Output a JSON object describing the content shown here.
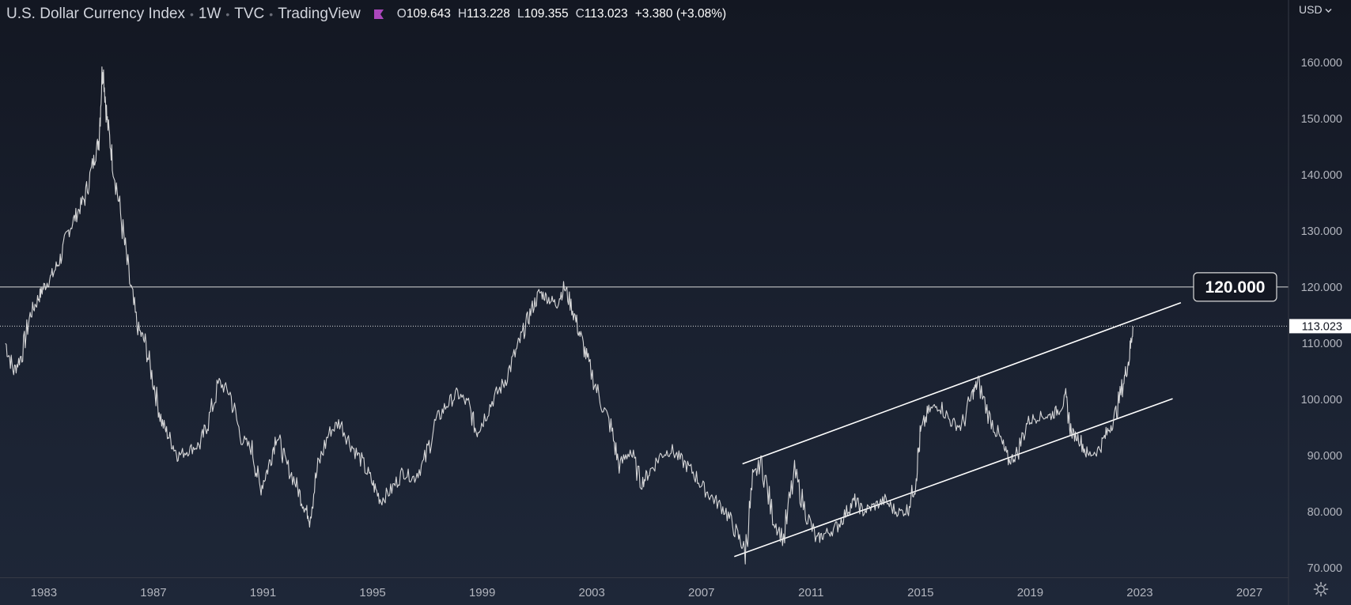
{
  "header": {
    "title": "U.S. Dollar Currency Index",
    "interval": "1W",
    "exchange": "TVC",
    "source": "TradingView",
    "open_label": "O",
    "open": "109.643",
    "high_label": "H",
    "high": "113.228",
    "low_label": "L",
    "low": "109.355",
    "close_label": "C",
    "close": "113.023",
    "change": "+3.380 (+3.08%)",
    "flag_color": "#ab47bc"
  },
  "currency_selector": "USD",
  "colors": {
    "price_line": "#e6e6e6",
    "drawing": "#ffffff",
    "axis_text": "#b2b5be"
  },
  "chart_data": {
    "type": "line",
    "title": "U.S. Dollar Currency Index",
    "x_ticks": [
      "1983",
      "1987",
      "1991",
      "1995",
      "1999",
      "2003",
      "2007",
      "2011",
      "2015",
      "2019",
      "2023",
      "2027"
    ],
    "y_ticks": [
      "70.000",
      "80.000",
      "90.000",
      "100.000",
      "110.000",
      "120.000",
      "130.000",
      "140.000",
      "150.000",
      "160.000"
    ],
    "xlim": [
      1981.4,
      2028.4
    ],
    "ylim": [
      68.3,
      171.1
    ],
    "grid": false,
    "series": [
      {
        "values_x": [
          1981.6,
          1981.9,
          1982.2,
          1982.5,
          1982.8,
          1983.0,
          1983.3,
          1983.6,
          1983.9,
          1984.2,
          1984.5,
          1984.8,
          1985.0,
          1985.15,
          1985.3,
          1985.5,
          1985.8,
          1986.1,
          1986.4,
          1986.7,
          1987.0,
          1987.3,
          1987.6,
          1987.9,
          1988.3,
          1988.7,
          1989.0,
          1989.4,
          1989.8,
          1990.2,
          1990.6,
          1990.9,
          1991.2,
          1991.5,
          1991.8,
          1992.2,
          1992.5,
          1992.7,
          1993.0,
          1993.4,
          1993.8,
          1994.2,
          1994.6,
          1995.0,
          1995.3,
          1995.7,
          1996.1,
          1996.5,
          1996.9,
          1997.3,
          1997.7,
          1998.1,
          1998.5,
          1998.8,
          1999.0,
          1999.4,
          1999.8,
          2000.2,
          2000.5,
          2000.8,
          2001.1,
          2001.4,
          2001.7,
          2002.0,
          2002.3,
          2002.6,
          2002.9,
          2003.3,
          2003.7,
          2004.0,
          2004.4,
          2004.8,
          2005.1,
          2005.5,
          2005.9,
          2006.3,
          2006.7,
          2007.1,
          2007.5,
          2007.9,
          2008.3,
          2008.6,
          2008.9,
          2009.2,
          2009.6,
          2010.0,
          2010.4,
          2010.8,
          2011.2,
          2011.5,
          2011.9,
          2012.3,
          2012.6,
          2012.9,
          2013.3,
          2013.7,
          2014.1,
          2014.5,
          2014.8,
          2015.0,
          2015.3,
          2015.7,
          2016.1,
          2016.5,
          2016.9,
          2017.1,
          2017.5,
          2017.9,
          2018.2,
          2018.5,
          2018.9,
          2019.3,
          2019.7,
          2020.0,
          2020.3,
          2020.5,
          2020.8,
          2021.1,
          2021.5,
          2021.8,
          2022.1,
          2022.4,
          2022.6,
          2022.75
        ],
        "values_y": [
          110,
          105,
          108,
          115,
          118,
          120,
          122,
          125,
          130,
          133,
          136,
          142,
          146,
          160,
          150,
          143,
          133,
          122,
          113,
          110,
          103,
          96,
          93,
          90,
          91,
          92,
          96,
          103,
          101,
          93,
          91,
          84,
          88,
          94,
          89,
          85,
          81,
          79,
          88,
          94,
          96,
          92,
          89,
          85,
          82,
          84,
          87,
          86,
          89,
          96,
          99,
          101,
          99,
          94,
          96,
          100,
          103,
          108,
          112,
          116,
          119,
          118,
          117,
          120,
          116,
          111,
          106,
          100,
          95,
          88,
          91,
          85,
          87,
          90,
          91,
          89,
          87,
          84,
          82,
          80,
          76,
          73,
          86,
          89,
          79,
          75,
          87,
          80,
          75,
          76,
          77,
          80,
          82,
          80,
          81,
          82,
          80,
          80,
          85,
          94,
          98,
          99,
          96,
          95,
          101,
          103,
          97,
          93,
          89,
          90,
          96,
          97,
          97,
          98,
          100,
          94,
          93,
          90,
          91,
          94,
          97,
          103,
          107,
          113
        ]
      }
    ],
    "horizontal_level": {
      "value": 120.0,
      "label": "120.000"
    },
    "last_price": {
      "value": 113.023,
      "label": "113.023"
    },
    "channel_lines": [
      {
        "from": [
          2008.5,
          88.5
        ],
        "to": [
          2024.5,
          117.2
        ]
      },
      {
        "from": [
          2008.2,
          72.0
        ],
        "to": [
          2024.2,
          100.1
        ]
      }
    ]
  }
}
